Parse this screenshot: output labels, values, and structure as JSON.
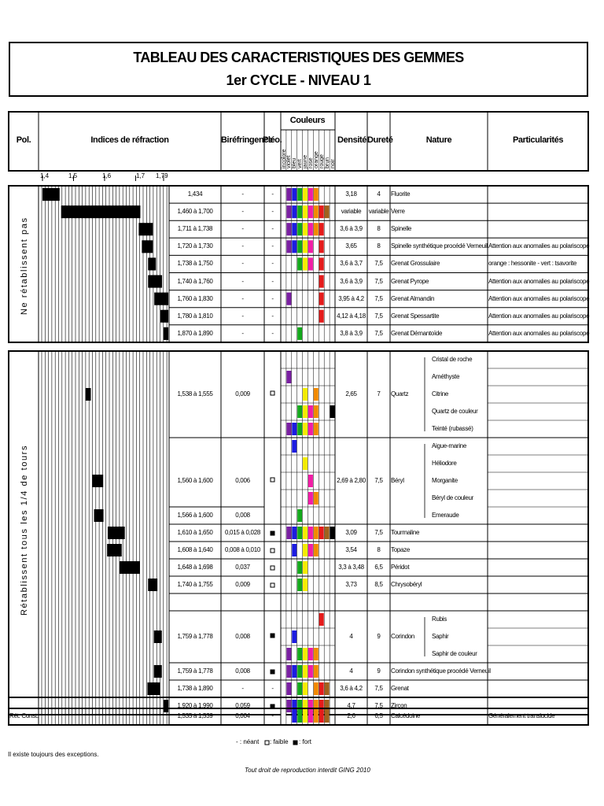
{
  "title": {
    "line1": "TABLEAU DES CARACTERISTIQUES DES GEMMES",
    "line2": "1er CYCLE    -    NIVEAU 1"
  },
  "headers": {
    "pol": "Pol.",
    "indices": "Indices de réfraction",
    "biref": "Biréfringence",
    "pleo": "Pléo.",
    "couleurs": "Couleurs",
    "densite": "Densité",
    "durete": "Dureté",
    "nature": "Nature",
    "particularites": "Particularités",
    "color_names": [
      "incolore",
      "violet",
      "bleu",
      "vert",
      "jaune",
      "rose",
      "orange",
      "rouge",
      "brun",
      "noir"
    ]
  },
  "scale": [
    "1,4",
    "1,5",
    "1,6",
    "1,7",
    "1,79"
  ],
  "colors": {
    "incolore": "#ffffff",
    "violet": "#7a1fa2",
    "bleu": "#1c1ce0",
    "vert": "#13a81b",
    "jaune": "#f4ec00",
    "rose": "#f21ca6",
    "orange": "#f28a00",
    "rouge": "#e41b1b",
    "brun": "#a2611c",
    "noir": "#000000"
  },
  "groups": {
    "g1": "Ne rétablissent pas",
    "g2": "Rétablissent tous les 1/4 de tours",
    "g3": "Rét. Const."
  },
  "rows": [
    {
      "ri": "1,434",
      "bi": "-",
      "pl": "-",
      "d": "3,18",
      "h": "4",
      "nat": "Fluorite",
      "part": ""
    },
    {
      "ri": "1,460 à 1,700",
      "bi": "-",
      "pl": "-",
      "d": "variable",
      "h": "variable",
      "nat": "Verre",
      "part": ""
    },
    {
      "ri": "1,711 à 1,738",
      "bi": "-",
      "pl": "-",
      "d": "3,6 à 3,9",
      "h": "8",
      "nat": "Spinelle",
      "part": ""
    },
    {
      "ri": "1,720 à 1,730",
      "bi": "-",
      "pl": "-",
      "d": "3,65",
      "h": "8",
      "nat": "Spinelle synthétique procédé Verneuil",
      "part": "Attention aux anomalies au polariscope"
    },
    {
      "ri": "1,738 à 1,750",
      "bi": "-",
      "pl": "-",
      "d": "3,6 à 3,7",
      "h": "7,5",
      "nat": "Grenat Grossulaire",
      "part": "orange : hessonite - vert : tsavorite"
    },
    {
      "ri": "1,740 à 1,760",
      "bi": "-",
      "pl": "-",
      "d": "3,6 à 3,9",
      "h": "7,5",
      "nat": "Grenat Pyrope",
      "part": "Attention aux anomalies au polariscope"
    },
    {
      "ri": "1,760 à 1,830",
      "bi": "-",
      "pl": "-",
      "d": "3,95 à 4,2",
      "h": "7,5",
      "nat": "Grenat Almandin",
      "part": "Attention aux anomalies au polariscope"
    },
    {
      "ri": "1,780 à 1,810",
      "bi": "-",
      "pl": "-",
      "d": "4,12 à 4,18",
      "h": "7,5",
      "nat": "Grenat Spessartite",
      "part": "Attention aux anomalies au polariscope"
    },
    {
      "ri": "1,870 à 1,890",
      "bi": "-",
      "pl": "-",
      "d": "3,8 à 3,9",
      "h": "7,5",
      "nat": "Grenat Démantoïde",
      "part": "Attention aux anomalies au polariscope"
    }
  ],
  "quartz": {
    "ri": "1,538 à 1,555",
    "bi": "0,009",
    "d": "2,65",
    "h": "7",
    "nat": "Quartz",
    "subs": [
      "Cristal de roche",
      "Améthyste",
      "Citrine",
      "Quartz de couleur",
      "Teinté (rubassé)"
    ]
  },
  "beryl": {
    "ri": "1,560 à 1,600",
    "ri2": "1,566 à 1,600",
    "bi": "0,006",
    "bi2": "0,008",
    "d": "2,69 à 2,80",
    "h": "7,5",
    "nat": "Béryl",
    "subs": [
      "Aigue-marine",
      "Héliodore",
      "Morganite",
      "Béryl de couleur",
      "Emeraude"
    ]
  },
  "rows2": [
    {
      "ri": "1,610 à 1,650",
      "bi": "0,015 à 0,028",
      "d": "3,09",
      "h": "7,5",
      "nat": "Tourmaline"
    },
    {
      "ri": "1,608 à 1,640",
      "bi": "0,008 à 0,010",
      "d": "3,54",
      "h": "8",
      "nat": "Topaze"
    },
    {
      "ri": "1,648 à 1,698",
      "bi": "0,037",
      "d": "3,3 à 3,48",
      "h": "6,5",
      "nat": "Péridot"
    },
    {
      "ri": "1,740 à 1,755",
      "bi": "0,009",
      "d": "3,73",
      "h": "8,5",
      "nat": "Chrysobéryl"
    }
  ],
  "corindon": {
    "ri": "1,759 à 1,778",
    "bi": "0,008",
    "d": "4",
    "h": "9",
    "nat": "Corindon",
    "subs": [
      "Rubis",
      "Saphir",
      "Saphir de couleur"
    ]
  },
  "rows3": [
    {
      "ri": "1,759 à 1,778",
      "bi": "0,008",
      "d": "4",
      "h": "9",
      "nat": "Corindon synthétique procédé Verneuil"
    },
    {
      "ri": "1,738 à 1,890",
      "bi": "-",
      "d": "3,6 à 4,2",
      "h": "7,5",
      "nat": "Grenat"
    },
    {
      "ri": "1,920 à 1,990",
      "bi": "0,059",
      "d": "4,7",
      "h": "7,5",
      "nat": "Zircon"
    }
  ],
  "calcedoine": {
    "ri": "1,535 à 1,539",
    "bi": "0,004",
    "pl": "-",
    "d": "2,6",
    "h": "6,5",
    "nat": "Calcédoine",
    "part": "Généralement translucide"
  },
  "legend": {
    "neant": "- : néant",
    "faible": ": faible",
    "fort": ": fort"
  },
  "note": "Il existe toujours des exceptions.",
  "copyright": "Tout droit de reproduction interdit GING 2010"
}
